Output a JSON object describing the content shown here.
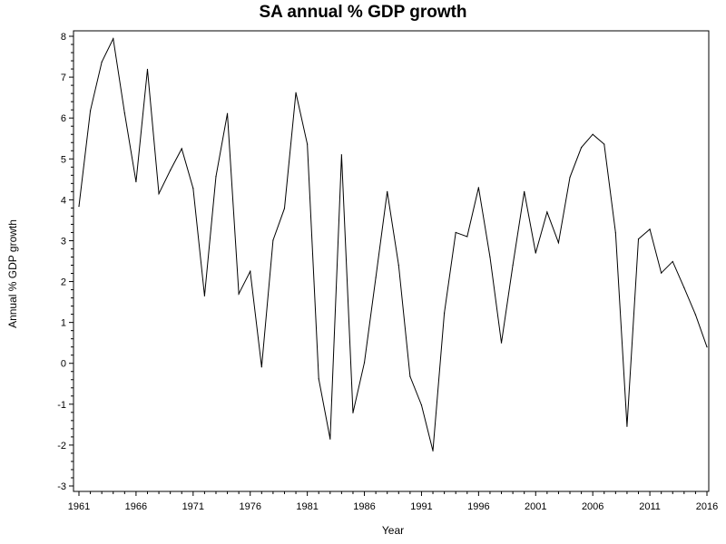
{
  "chart_data": {
    "type": "line",
    "title": "SA annual % GDP growth",
    "xlabel": "Year",
    "ylabel": "Annual % GDP growth",
    "xlim": [
      1961,
      2016
    ],
    "ylim": [
      -3,
      8
    ],
    "x_ticks": [
      1961,
      1966,
      1971,
      1976,
      1981,
      1986,
      1991,
      1996,
      2001,
      2006,
      2011,
      2016
    ],
    "y_ticks": [
      -3,
      -2,
      -1,
      0,
      1,
      2,
      3,
      4,
      5,
      6,
      7,
      8
    ],
    "grid": false,
    "legend": "none",
    "line_color": "#000000",
    "series": [
      {
        "name": "Annual % GDP growth",
        "x": [
          1961,
          1962,
          1963,
          1964,
          1965,
          1966,
          1967,
          1968,
          1969,
          1970,
          1971,
          1972,
          1973,
          1974,
          1975,
          1976,
          1977,
          1978,
          1979,
          1980,
          1981,
          1982,
          1983,
          1984,
          1985,
          1986,
          1987,
          1988,
          1989,
          1990,
          1991,
          1992,
          1993,
          1994,
          1995,
          1996,
          1997,
          1998,
          1999,
          2000,
          2001,
          2002,
          2003,
          2004,
          2005,
          2006,
          2007,
          2008,
          2009,
          2010,
          2011,
          2012,
          2013,
          2014,
          2015,
          2016
        ],
        "values": [
          3.84,
          6.18,
          7.37,
          7.94,
          6.12,
          4.44,
          7.19,
          4.15,
          4.72,
          5.25,
          4.28,
          1.65,
          4.57,
          6.11,
          1.7,
          2.25,
          -0.09,
          3.01,
          3.79,
          6.62,
          5.36,
          -0.38,
          -1.85,
          5.1,
          -1.21,
          0.02,
          2.1,
          4.2,
          2.4,
          -0.32,
          -1.02,
          -2.14,
          1.23,
          3.2,
          3.1,
          4.3,
          2.6,
          0.5,
          2.4,
          4.2,
          2.7,
          3.7,
          2.95,
          4.55,
          5.28,
          5.6,
          5.36,
          3.19,
          -1.54,
          3.04,
          3.28,
          2.21,
          2.49,
          1.85,
          1.19,
          0.4
        ]
      }
    ]
  }
}
